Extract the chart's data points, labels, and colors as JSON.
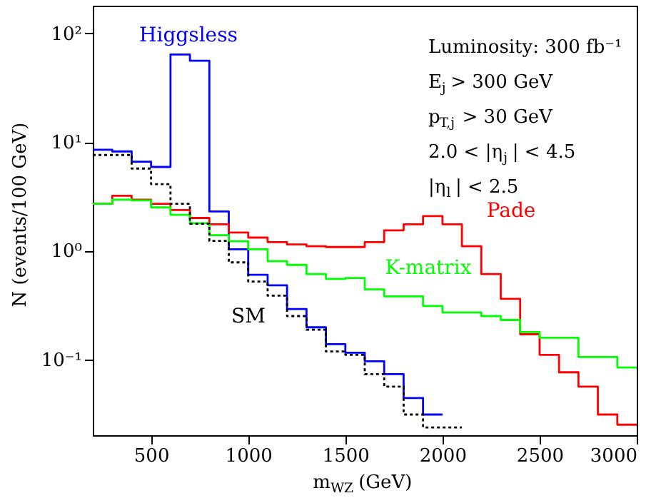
{
  "chart_data": {
    "type": "histogram",
    "xlabel": "m$_{WZ}$ (GeV)",
    "ylabel": "N (events/100 GeV)",
    "log": "y",
    "bins": [
      200,
      300,
      400,
      500,
      600,
      700,
      800,
      900,
      1000,
      1100,
      1200,
      1300,
      1400,
      1500,
      1600,
      1700,
      1800,
      1900,
      2000,
      2100,
      2200,
      2300,
      2400,
      2500,
      2600,
      2700,
      2800,
      2900,
      3000
    ],
    "series": [
      {
        "name": "Higgsless",
        "color": "#0000ff",
        "line_style": "solid",
        "values": [
          8.5,
          8.2,
          6.6,
          5.9,
          64,
          56,
          2.3,
          1.03,
          0.6,
          0.48,
          0.29,
          0.197,
          0.138,
          0.115,
          0.096,
          0.073,
          0.044,
          0.031
        ],
        "bins": [
          200,
          300,
          400,
          500,
          600,
          700,
          800,
          900,
          1000,
          1100,
          1200,
          1300,
          1400,
          1500,
          1600,
          1700,
          1800,
          1900,
          2000
        ]
      },
      {
        "name": "Pade",
        "color": "#ff0000",
        "line_style": "solid",
        "values": [
          2.7,
          3.2,
          2.95,
          2.7,
          2.37,
          2.0,
          1.75,
          1.47,
          1.32,
          1.2,
          1.14,
          1.1,
          1.08,
          1.08,
          1.2,
          1.54,
          1.75,
          2.08,
          1.75,
          1.1,
          0.61,
          0.36,
          0.17,
          0.11,
          0.076,
          0.056,
          0.031,
          0.025
        ]
      },
      {
        "name": "K-matrix",
        "color": "#00ff00",
        "line_style": "solid",
        "values": [
          2.7,
          2.95,
          2.9,
          2.5,
          2.14,
          1.79,
          1.39,
          1.22,
          1.03,
          0.8,
          0.74,
          0.61,
          0.55,
          0.56,
          0.44,
          0.38,
          0.38,
          0.31,
          0.27,
          0.27,
          0.25,
          0.23,
          0.178,
          0.158,
          0.158,
          0.105,
          0.105,
          0.084
        ]
      },
      {
        "name": "SM",
        "color": "#000000",
        "line_style": "dotted",
        "values": [
          7.6,
          7.6,
          5.7,
          4.1,
          2.7,
          1.77,
          1.23,
          0.78,
          0.52,
          0.385,
          0.25,
          0.187,
          0.118,
          0.11,
          0.073,
          0.056,
          0.031,
          0.0236,
          0.0236
        ],
        "bins": [
          200,
          300,
          400,
          500,
          600,
          700,
          800,
          900,
          1000,
          1100,
          1200,
          1300,
          1400,
          1500,
          1600,
          1700,
          1800,
          1900,
          2000,
          2100
        ]
      }
    ],
    "xlim": [
      200,
      3000
    ],
    "xticks": [
      500,
      1000,
      1500,
      2000,
      2500,
      3000
    ],
    "ylim": [
      0.02,
      180
    ],
    "yticks": [
      {
        "value": 0.1,
        "label": "10⁻¹"
      },
      {
        "value": 1,
        "label": "10⁰"
      },
      {
        "value": 10,
        "label": "10¹"
      },
      {
        "value": 100,
        "label": "10²"
      }
    ],
    "grid": false,
    "annotations": [
      "Luminosity: 300 fb⁻¹",
      "E$_{j}$ > 300 GeV",
      "p$_{T,j}$ > 30 GeV",
      "2.0 < |η$_{j}$| < 4.5",
      "|η$_{l}$| < 2.5"
    ]
  }
}
